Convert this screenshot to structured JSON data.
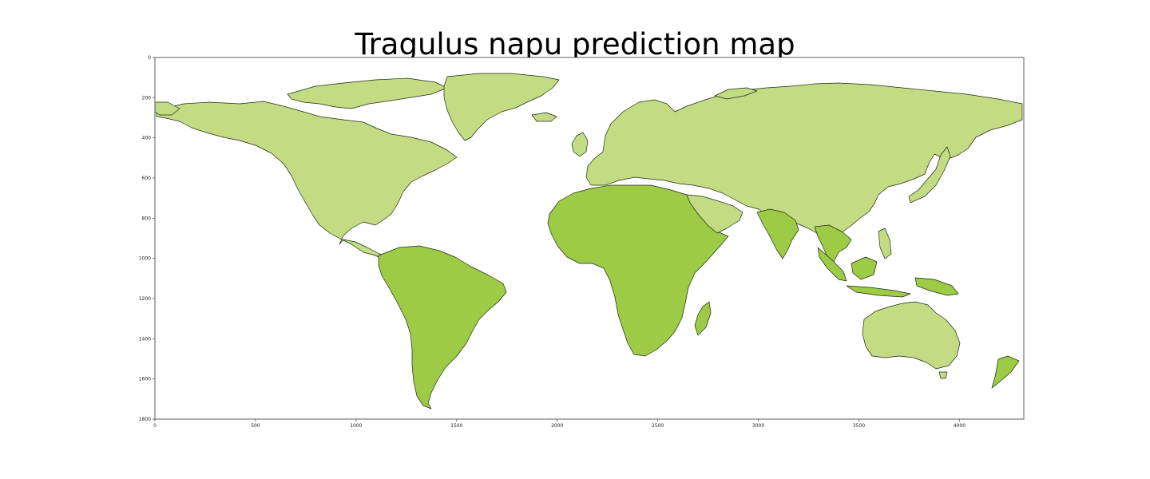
{
  "title": "Tragulus napu prediction map",
  "colors": {
    "land": "#c3db82",
    "land_high": "#9dcb45",
    "coast": "#1b2a12",
    "axis": "#555555",
    "background": "#ffffff"
  },
  "axes": {
    "xlim": [
      0,
      4320
    ],
    "ylim": [
      0,
      1800
    ],
    "y_inverted": true,
    "x_ticks": [
      "0",
      "500",
      "1000",
      "1500",
      "2000",
      "2500",
      "3000",
      "3500",
      "4000"
    ],
    "x_tick_values": [
      0,
      500,
      1000,
      1500,
      2000,
      2500,
      3000,
      3500,
      4000
    ],
    "y_ticks": [
      "0",
      "200",
      "400",
      "600",
      "800",
      "1000",
      "1200",
      "1400",
      "1600",
      "1800"
    ],
    "y_tick_values": [
      0,
      200,
      400,
      600,
      800,
      1000,
      1200,
      1400,
      1600,
      1800
    ]
  },
  "landmasses": [
    {
      "name": "north-america",
      "fill": "land"
    },
    {
      "name": "greenland",
      "fill": "land"
    },
    {
      "name": "canadian-arctic-islands",
      "fill": "land"
    },
    {
      "name": "south-america",
      "fill": "land_high"
    },
    {
      "name": "eurasia",
      "fill": "land"
    },
    {
      "name": "africa",
      "fill": "land_high"
    },
    {
      "name": "madagascar",
      "fill": "land_high"
    },
    {
      "name": "arabia",
      "fill": "land"
    },
    {
      "name": "india",
      "fill": "land_high"
    },
    {
      "name": "southeast-asia",
      "fill": "land_high"
    },
    {
      "name": "indonesia-borneo",
      "fill": "land_high"
    },
    {
      "name": "new-guinea",
      "fill": "land_high"
    },
    {
      "name": "japan",
      "fill": "land"
    },
    {
      "name": "australia",
      "fill": "land"
    },
    {
      "name": "new-zealand",
      "fill": "land_high"
    },
    {
      "name": "british-isles",
      "fill": "land"
    },
    {
      "name": "iceland",
      "fill": "land"
    },
    {
      "name": "svalbard-novaya-zemlya",
      "fill": "land"
    }
  ]
}
